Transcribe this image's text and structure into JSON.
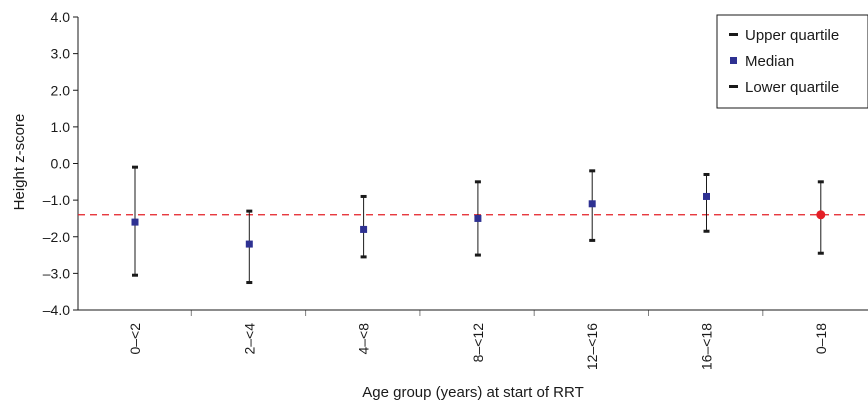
{
  "chart_data": {
    "type": "scatter",
    "xlabel": "Age group (years) at start of RRT",
    "ylabel": "Height z-score",
    "ylim": [
      -4.0,
      4.0
    ],
    "yticks": [
      "4.0",
      "3.0",
      "2.0",
      "1.0",
      "0.0",
      "–1.0",
      "–2.0",
      "–3.0",
      "–4.0"
    ],
    "ytick_values": [
      4,
      3,
      2,
      1,
      0,
      -1,
      -2,
      -3,
      -4
    ],
    "categories": [
      "0–<2",
      "2–<4",
      "4–<8",
      "8–<12",
      "12–<16",
      "16–<18",
      "0–18"
    ],
    "series": [
      {
        "name": "Upper quartile",
        "values": [
          -0.1,
          -1.3,
          -0.9,
          -0.5,
          -0.2,
          -0.3,
          -0.5
        ]
      },
      {
        "name": "Median",
        "values": [
          -1.6,
          -2.2,
          -1.8,
          -1.5,
          -1.1,
          -0.9,
          -1.4
        ]
      },
      {
        "name": "Lower quartile",
        "values": [
          -3.05,
          -3.25,
          -2.55,
          -2.5,
          -2.1,
          -1.85,
          -2.45
        ]
      }
    ],
    "reference_line": -1.4,
    "legend": {
      "placement": "top-right",
      "entries": [
        "Upper quartile",
        "Median",
        "Lower quartile"
      ]
    },
    "colors": {
      "median": "#2e3192",
      "overall_median": "#e41e26",
      "reference": "#e41e26",
      "axis": "#1a1a1a",
      "whisker": "#1a1a1a"
    },
    "grid": false
  }
}
